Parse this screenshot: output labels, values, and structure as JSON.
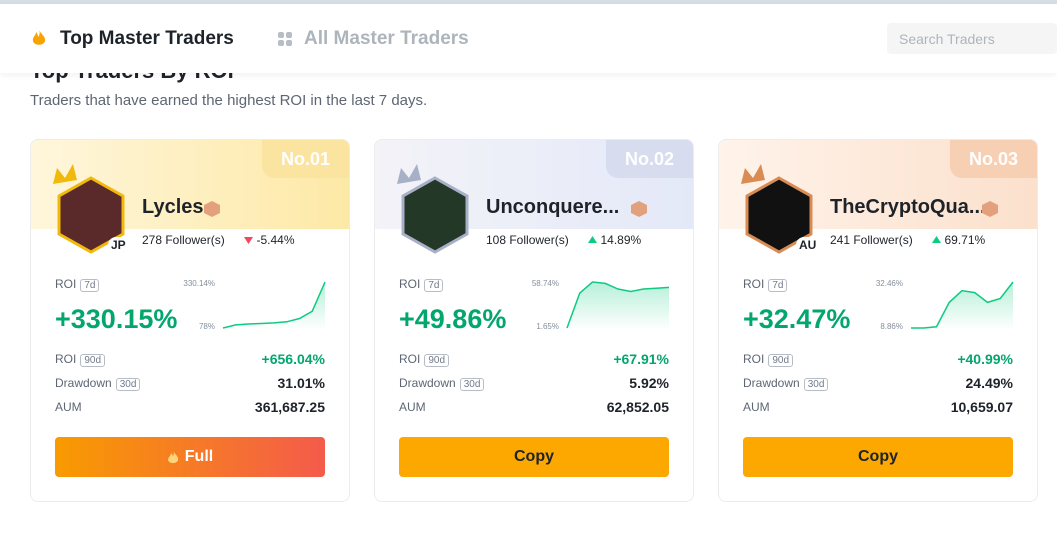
{
  "tabs": [
    {
      "label": "Top Master Traders"
    },
    {
      "label": "All Master Traders"
    }
  ],
  "search": {
    "placeholder": "Search Traders"
  },
  "section": {
    "title": "Top Traders By ROI",
    "subtitle": "Traders that have earned the highest ROI in the last 7 days."
  },
  "cards": [
    {
      "rank": "No.01",
      "name": "Lycles",
      "country": "JP",
      "followers": "278 Follower(s)",
      "change": "-5.44%",
      "roi_label": "ROI",
      "roi_period": "7d",
      "roi": "+330.15%",
      "chart_max": "330.14%",
      "chart_min": "78%",
      "spark": [
        78,
        95,
        100,
        103,
        106,
        112,
        130,
        170,
        330.14
      ],
      "stats": [
        {
          "label": "ROI",
          "period": "90d",
          "value": "+656.04%"
        },
        {
          "label": "Drawdown",
          "period": "30d",
          "value": "31.01%"
        },
        {
          "label": "AUM",
          "value": "361,687.25"
        }
      ],
      "button": "Full"
    },
    {
      "rank": "No.02",
      "name": "Unconquere...",
      "followers": "108 Follower(s)",
      "change": "14.89%",
      "roi_label": "ROI",
      "roi_period": "7d",
      "roi": "+49.86%",
      "chart_max": "58.74%",
      "chart_min": "1.65%",
      "spark": [
        1.65,
        45,
        58.74,
        57,
        50,
        47,
        50,
        51,
        52
      ],
      "stats": [
        {
          "label": "ROI",
          "period": "90d",
          "value": "+67.91%"
        },
        {
          "label": "Drawdown",
          "period": "30d",
          "value": "5.92%"
        },
        {
          "label": "AUM",
          "value": "62,852.05"
        }
      ],
      "button": "Copy"
    },
    {
      "rank": "No.03",
      "name": "TheCryptoQua...",
      "country": "AU",
      "followers": "241 Follower(s)",
      "change": "69.71%",
      "roi_label": "ROI",
      "roi_period": "7d",
      "roi": "+32.47%",
      "chart_max": "32.46%",
      "chart_min": "8.86%",
      "spark": [
        8.86,
        8.86,
        9.5,
        22,
        28,
        27,
        22,
        24,
        32.46
      ],
      "stats": [
        {
          "label": "ROI",
          "period": "90d",
          "value": "+40.99%"
        },
        {
          "label": "Drawdown",
          "period": "30d",
          "value": "24.49%"
        },
        {
          "label": "AUM",
          "value": "10,659.07"
        }
      ],
      "button": "Copy"
    }
  ]
}
